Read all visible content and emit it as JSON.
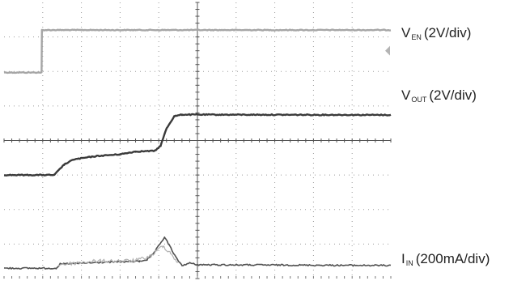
{
  "chart_data": {
    "type": "line",
    "title": "",
    "xlabel": "",
    "ylabel": "",
    "grid": true,
    "divisions": {
      "x": 10,
      "y": 8
    },
    "ylim": [
      0,
      8
    ],
    "xlim": [
      0,
      10
    ],
    "series": [
      {
        "name_main": "V",
        "name_sub": "EN",
        "name_scale": "(2V/div)",
        "color": "#a6a6a6",
        "width": 2.4,
        "noise": 0.5,
        "points": [
          [
            0,
            5.97
          ],
          [
            0.97,
            5.97
          ],
          [
            0.98,
            7.2
          ],
          [
            10,
            7.2
          ]
        ]
      },
      {
        "name_main": "V",
        "name_sub": "OUT",
        "name_scale": "(2V/div)",
        "color": "#3a3a3a",
        "width": 2.4,
        "noise": 0.6,
        "points": [
          [
            0,
            3.0
          ],
          [
            1.3,
            3.0
          ],
          [
            1.55,
            3.3
          ],
          [
            1.8,
            3.45
          ],
          [
            2.4,
            3.55
          ],
          [
            3.0,
            3.6
          ],
          [
            3.4,
            3.68
          ],
          [
            3.9,
            3.7
          ],
          [
            4.05,
            3.85
          ],
          [
            4.2,
            4.35
          ],
          [
            4.4,
            4.7
          ],
          [
            4.6,
            4.75
          ],
          [
            10,
            4.74
          ]
        ]
      },
      {
        "name_main": "I",
        "name_sub": "IN",
        "name_scale": "(200mA/div)",
        "color": "#505050",
        "width": 1.6,
        "noise": 0.9,
        "points": [
          [
            0,
            0.3
          ],
          [
            1.35,
            0.3
          ],
          [
            1.45,
            0.42
          ],
          [
            2.8,
            0.48
          ],
          [
            3.5,
            0.5
          ],
          [
            3.7,
            0.55
          ],
          [
            3.85,
            0.7
          ],
          [
            4.0,
            0.95
          ],
          [
            4.15,
            1.2
          ],
          [
            4.28,
            0.95
          ],
          [
            4.45,
            0.6
          ],
          [
            4.6,
            0.38
          ],
          [
            4.8,
            0.45
          ],
          [
            5.0,
            0.4
          ],
          [
            10,
            0.38
          ]
        ]
      }
    ],
    "overlay": {
      "color": "#b0b0b0",
      "points": [
        [
          1.4,
          0.4
        ],
        [
          2.3,
          0.5
        ],
        [
          3.4,
          0.52
        ],
        [
          3.8,
          0.65
        ],
        [
          4.1,
          0.95
        ],
        [
          4.3,
          0.75
        ],
        [
          4.5,
          0.45
        ]
      ]
    },
    "marker": {
      "color": "#b4b4b4",
      "y": 6.6
    }
  }
}
